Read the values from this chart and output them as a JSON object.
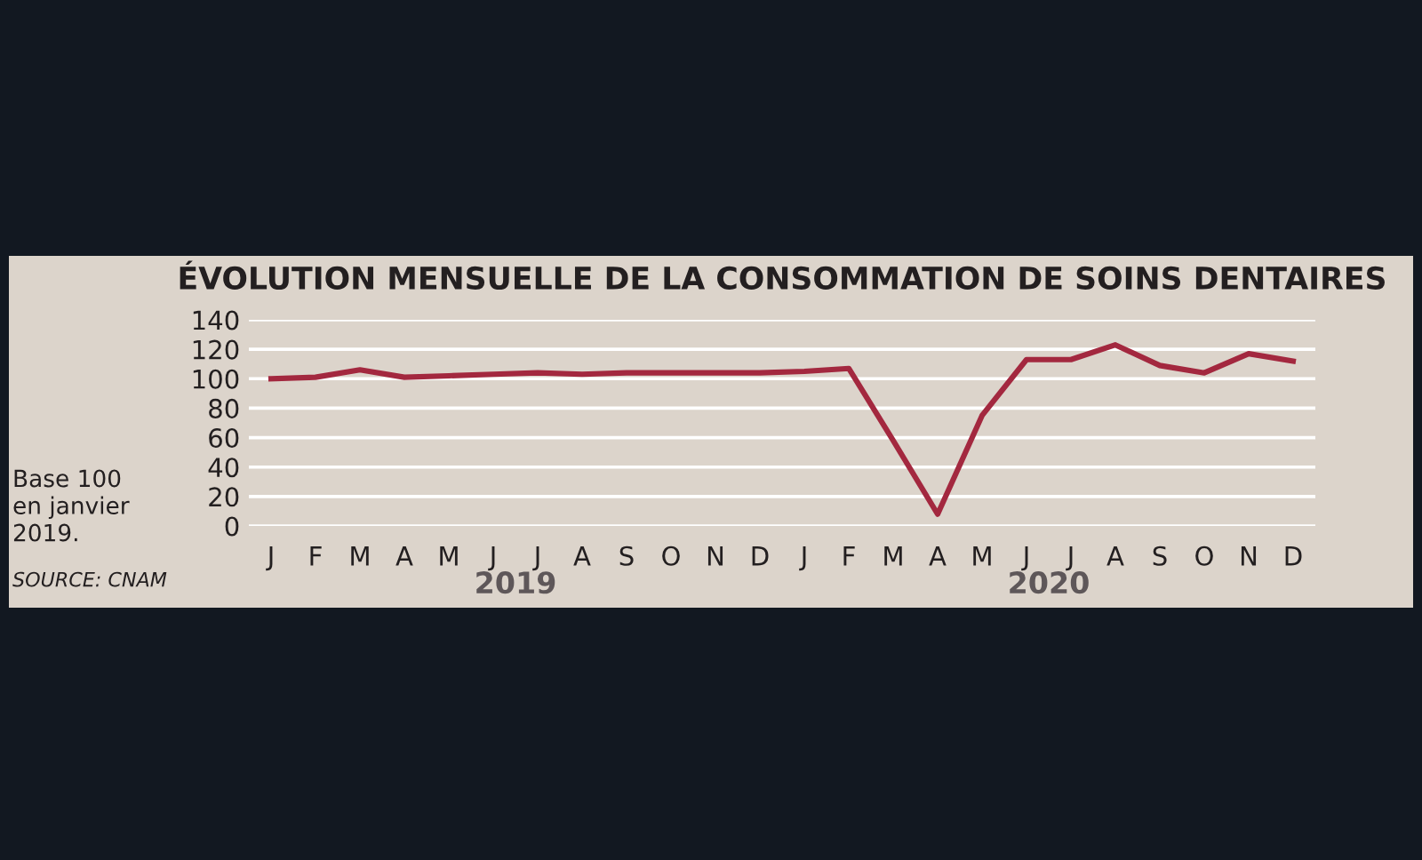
{
  "chart_data": {
    "type": "line",
    "title": "ÉVOLUTION MENSUELLE DE LA CONSOMMATION DE SOINS DENTAIRES",
    "categories": [
      "J",
      "F",
      "M",
      "A",
      "M",
      "J",
      "J",
      "A",
      "S",
      "O",
      "N",
      "D",
      "J",
      "F",
      "M",
      "A",
      "M",
      "J",
      "J",
      "A",
      "S",
      "O",
      "N",
      "D"
    ],
    "series": [
      {
        "color": "#a3283f",
        "values": [
          100,
          101,
          106,
          101,
          102,
          103,
          104,
          103,
          104,
          104,
          104,
          104,
          105,
          107,
          58,
          8,
          75,
          113,
          113,
          123,
          109,
          104,
          117,
          112
        ]
      }
    ],
    "ylim": [
      0,
      140
    ],
    "yticks": [
      0,
      20,
      40,
      60,
      80,
      100,
      120,
      140
    ],
    "grid": "y",
    "legend": false,
    "marker": "none",
    "line_style": "solid",
    "annotations": [
      "2019",
      "2020",
      "Base 100\nen janvier\n2019.",
      "SOURCE: CNAM"
    ]
  }
}
